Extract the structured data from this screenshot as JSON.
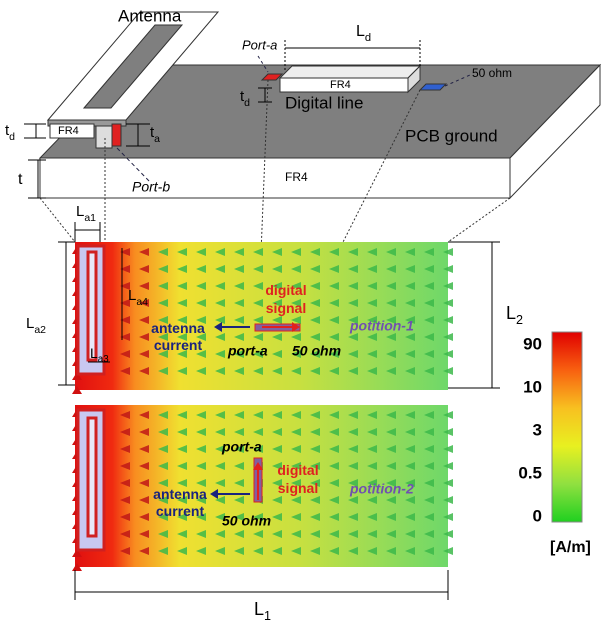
{
  "top": {
    "antenna": "Antenna",
    "port_a": "Port-a",
    "ld": {
      "main": "L",
      "sub": "d"
    },
    "ohm": "50 ohm",
    "fr4_digital": "FR4",
    "td_digital": {
      "main": "t",
      "sub": "d"
    },
    "digital_line": "Digital line",
    "td_antenna": {
      "main": "t",
      "sub": "d"
    },
    "fr4_antenna": "FR4",
    "ta": {
      "main": "t",
      "sub": "a"
    },
    "pcb_ground": "PCB ground",
    "t": "t",
    "fr4_board": "FR4",
    "port_b": "Port-b"
  },
  "dimensions": {
    "la1": {
      "main": "L",
      "sub": "a1"
    },
    "la2": {
      "main": "L",
      "sub": "a2"
    },
    "la3": {
      "main": "L",
      "sub": "a3"
    },
    "la4": {
      "main": "L",
      "sub": "a4"
    },
    "l2": {
      "main": "L",
      "sub": "2"
    },
    "l1": {
      "main": "L",
      "sub": "1"
    }
  },
  "panel1": {
    "digital_signal": [
      "digital",
      "signal"
    ],
    "antenna_current": [
      "antenna",
      "current"
    ],
    "port_a": "port-a",
    "ohm": "50 ohm",
    "position": "potition-1"
  },
  "panel2": {
    "port_a": "port-a",
    "digital_signal": [
      "digital",
      "signal"
    ],
    "antenna_current": [
      "antenna",
      "current"
    ],
    "ohm": "50 ohm",
    "position": "potition-2"
  },
  "colorbar": {
    "ticks": [
      "90",
      "10",
      "3",
      "0.5",
      "0"
    ],
    "unit": "[A/m]"
  }
}
